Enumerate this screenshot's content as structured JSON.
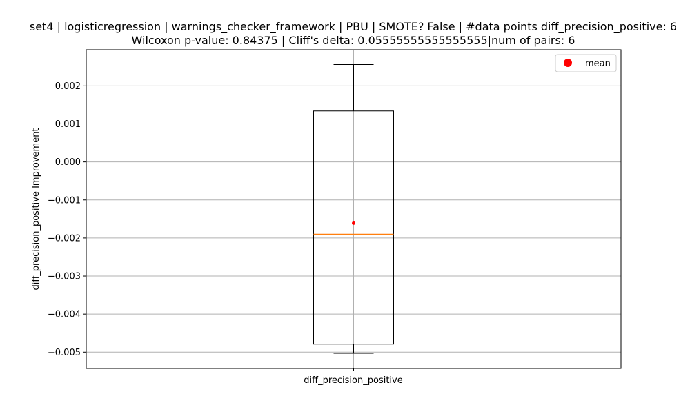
{
  "chart_data": {
    "type": "box",
    "title_line1": "set4 | logisticregression | warnings_checker_framework | PBU | SMOTE? False | #data points diff_precision_positive: 6",
    "title_line2": "Wilcoxon p-value: 0.84375 | Cliff's delta: 0.05555555555555555|num of pairs: 6",
    "xlabel": "",
    "ylabel": "diff_precision_positive Improvement",
    "categories": [
      "diff_precision_positive"
    ],
    "ylim": [
      -0.00543,
      0.00295
    ],
    "yticks": [
      0.002,
      0.001,
      0.0,
      -0.001,
      -0.002,
      -0.003,
      -0.004,
      -0.005
    ],
    "ytick_labels": [
      "0.002",
      "0.001",
      "0.000",
      "−0.001",
      "−0.002",
      "−0.003",
      "−0.004",
      "−0.005"
    ],
    "grid": true,
    "legend": {
      "placement": "top-right",
      "entries": [
        "mean"
      ]
    },
    "box": {
      "whisker_low": -0.00503,
      "q1": -0.00479,
      "median": -0.0019,
      "q3": 0.00134,
      "whisker_high": 0.00256,
      "mean": -0.00161
    },
    "colors": {
      "box": "#000000",
      "median": "#ff7f0e",
      "mean": "#ff0000",
      "grid": "#b0b0b0"
    }
  }
}
